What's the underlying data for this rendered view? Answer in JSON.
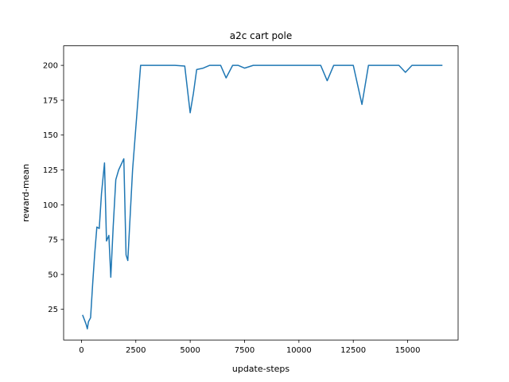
{
  "chart_data": {
    "type": "line",
    "title": "a2c cart pole",
    "xlabel": "update-steps",
    "ylabel": "reward-mean",
    "xlim": [
      -820,
      17320
    ],
    "ylim": [
      3,
      214
    ],
    "xticks": [
      0,
      2500,
      5000,
      7500,
      10000,
      12500,
      15000
    ],
    "yticks": [
      25,
      50,
      75,
      100,
      125,
      150,
      175,
      200
    ],
    "grid": false,
    "series": [
      {
        "color": "#1f77b4",
        "x": [
          50,
          150,
          220,
          270,
          320,
          420,
          520,
          610,
          710,
          820,
          920,
          1060,
          1150,
          1260,
          1350,
          1460,
          1580,
          1710,
          1950,
          2050,
          2130,
          2350,
          2720,
          2800,
          3500,
          4300,
          4750,
          5000,
          5150,
          5300,
          5600,
          5900,
          6100,
          6400,
          6650,
          6950,
          7200,
          7500,
          7900,
          8500,
          9000,
          10000,
          10500,
          11000,
          11300,
          11600,
          12000,
          12500,
          12900,
          13200,
          13500,
          14000,
          14600,
          14900,
          15200,
          15600,
          16000,
          16600
        ],
        "y": [
          21,
          17,
          14,
          11,
          16,
          19,
          44,
          65,
          84,
          83,
          108,
          130,
          74,
          78,
          48,
          84,
          118,
          125,
          133,
          64,
          60,
          125,
          200,
          200,
          200,
          200,
          199.5,
          166,
          180,
          197,
          198,
          200,
          200,
          200,
          191,
          200,
          200,
          198,
          200,
          200,
          200,
          200,
          200,
          200,
          189,
          200,
          200,
          200,
          172,
          200,
          200,
          200,
          200,
          195,
          200,
          200,
          200,
          200
        ]
      }
    ]
  }
}
